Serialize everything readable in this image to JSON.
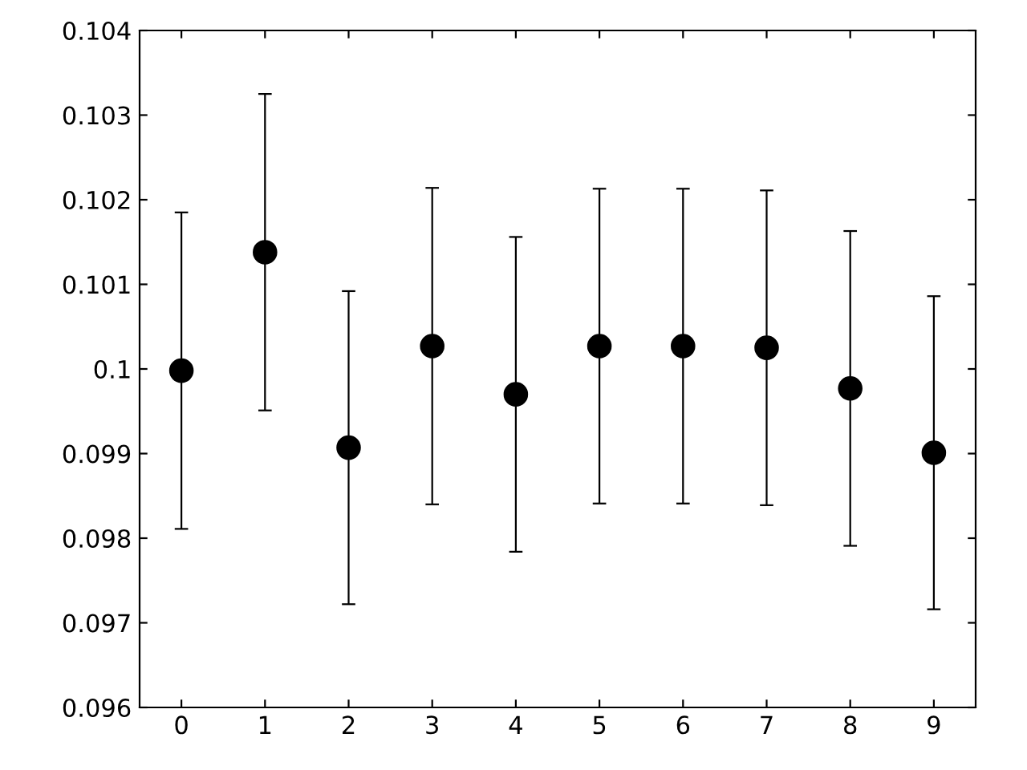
{
  "chart_data": {
    "type": "scatter",
    "x": [
      0,
      1,
      2,
      3,
      4,
      5,
      6,
      7,
      8,
      9
    ],
    "series": [
      {
        "color": "#000000",
        "values": [
          0.09998,
          0.10138,
          0.09907,
          0.10027,
          0.0997,
          0.10027,
          0.10027,
          0.10025,
          0.09977,
          0.09901
        ],
        "errors": [
          0.00187,
          0.00187,
          0.00185,
          0.00187,
          0.00186,
          0.00186,
          0.00186,
          0.00186,
          0.00186,
          0.00185
        ]
      }
    ],
    "xlim": [
      -0.5,
      9.5
    ],
    "xticks": [
      0,
      1,
      2,
      3,
      4,
      5,
      6,
      7,
      8,
      9
    ],
    "ylim": [
      0.096,
      0.104
    ],
    "yticks": [
      0.096,
      0.097,
      0.098,
      0.099,
      0.1,
      0.101,
      0.102,
      0.103,
      0.104
    ],
    "marker": "circle",
    "grid": false,
    "legend": false
  }
}
